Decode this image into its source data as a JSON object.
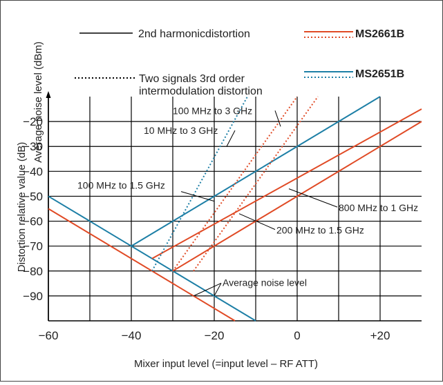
{
  "chart_data": {
    "type": "line",
    "xlabel": "Mixer input level (=input level – RF ATT)",
    "ylabel_lines": [
      "Distortion relative value (dB)",
      "Average noise level (dBm)"
    ],
    "xlim": [
      -60,
      30
    ],
    "ylim": [
      -100,
      -10
    ],
    "x_ticks": [
      -60,
      -40,
      -20,
      0,
      20
    ],
    "x_tick_labels": [
      "−60",
      "−40",
      "−20",
      "0",
      "+20"
    ],
    "y_ticks": [
      -20,
      -30,
      -40,
      -50,
      -60,
      -70,
      -80,
      -90
    ],
    "y_tick_labels": [
      "−20",
      "−30",
      "−40",
      "−50",
      "−60",
      "−70",
      "−80",
      "−90"
    ],
    "grid": true,
    "legend": {
      "line_types": [
        {
          "style": "solid",
          "label": "2nd harmonicdistortion"
        },
        {
          "style": "dotted",
          "label_lines": [
            "Two signals 3rd order",
            "intermodulation distortion"
          ]
        }
      ],
      "models": [
        {
          "name": "MS2661B",
          "color": "#e04a25"
        },
        {
          "name": "MS2651B",
          "color": "#1d7fa6"
        }
      ]
    },
    "series": [
      {
        "model": "MS2651B",
        "style": "solid",
        "kind": "Average noise level",
        "points": [
          [
            -60,
            -50
          ],
          [
            -10,
            -100
          ]
        ]
      },
      {
        "model": "MS2661B",
        "style": "solid",
        "kind": "Average noise level",
        "points": [
          [
            -60,
            -55
          ],
          [
            -15,
            -100
          ]
        ]
      },
      {
        "model": "MS2651B",
        "style": "solid",
        "kind": "2nd harmonic",
        "band": "100 MHz to 1.5 GHz",
        "points": [
          [
            -40,
            -70
          ],
          [
            20,
            -10
          ]
        ]
      },
      {
        "model": "MS2661B",
        "style": "solid",
        "kind": "2nd harmonic",
        "band": "800 MHz to 1 GHz",
        "points": [
          [
            -30,
            -80
          ],
          [
            30,
            -20
          ]
        ]
      },
      {
        "model": "MS2661B",
        "style": "solid",
        "kind": "2nd harmonic",
        "band": "200 MHz to 1.5 GHz",
        "points": [
          [
            -35,
            -75
          ],
          [
            30,
            -15
          ]
        ]
      },
      {
        "model": "MS2651B",
        "style": "dotted",
        "kind": "3rd order IMD",
        "band": "10 MHz to 3 GHz",
        "points": [
          [
            -35,
            -80
          ],
          [
            -12,
            -10
          ]
        ]
      },
      {
        "model": "MS2661B",
        "style": "dotted",
        "kind": "3rd order IMD",
        "band": "100 MHz to 3 GHz",
        "points": [
          [
            -30,
            -80
          ],
          [
            0,
            -10
          ]
        ]
      },
      {
        "model": "MS2661B",
        "style": "dotted",
        "kind": "3rd order IMD",
        "band": "100 MHz to 3 GHz",
        "points": [
          [
            -25,
            -80
          ],
          [
            5,
            -10
          ]
        ]
      }
    ],
    "annotations": [
      {
        "text": "100 MHz to 3 GHz",
        "at": [
          -30,
          -17
        ],
        "target": [
          -4,
          -22
        ]
      },
      {
        "text": "10 MHz to 3 GHz",
        "at": [
          -37,
          -25
        ],
        "target": [
          -17,
          -30
        ]
      },
      {
        "text": "100 MHz to 1.5 GHz",
        "at": [
          -53,
          -47
        ],
        "target": [
          -20,
          -52
        ]
      },
      {
        "text": "800 MHz to 1 GHz",
        "at": [
          10,
          -56
        ],
        "target": [
          -2,
          -47
        ]
      },
      {
        "text": "200 MHz to 1.5 GHz",
        "at": [
          -5,
          -65
        ],
        "target": [
          -14,
          -57
        ]
      },
      {
        "text": "Average noise level",
        "at": [
          -18,
          -86
        ],
        "target": [
          -25,
          -90
        ]
      }
    ],
    "annotation_extra_targets": [
      {
        "for": "Average noise level",
        "target": [
          -20,
          -90
        ]
      }
    ]
  }
}
